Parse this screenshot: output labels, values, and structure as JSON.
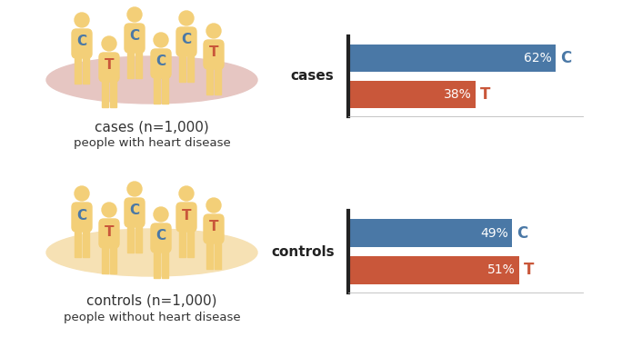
{
  "chart_data": [
    {
      "type": "bar",
      "orientation": "horizontal",
      "ylabel": "cases",
      "categories": [
        "C",
        "T"
      ],
      "values": [
        62,
        38
      ],
      "value_labels": [
        "62%",
        "38%"
      ],
      "colors": [
        "#4a78a6",
        "#c9573a"
      ],
      "data_labels": true,
      "tick_labels": false,
      "xlim": [
        0,
        70
      ],
      "xticks": []
    },
    {
      "type": "bar",
      "orientation": "horizontal",
      "ylabel": "controls",
      "categories": [
        "C",
        "T"
      ],
      "values": [
        49,
        51
      ],
      "value_labels": [
        "49%",
        "51%"
      ],
      "colors": [
        "#4a78a6",
        "#c9573a"
      ],
      "data_labels": true,
      "tick_labels": false,
      "xlim": [
        0,
        70
      ],
      "xticks": []
    }
  ],
  "illustrations": [
    {
      "caption": "cases (n=1,000)",
      "description": "people with heart disease",
      "people": [
        "C",
        "T",
        "C",
        "C",
        "C",
        "T"
      ]
    },
    {
      "caption": "controls (n=1,000)",
      "description": "people without heart disease",
      "people": [
        "C",
        "T",
        "C",
        "C",
        "T",
        "T"
      ]
    }
  ]
}
